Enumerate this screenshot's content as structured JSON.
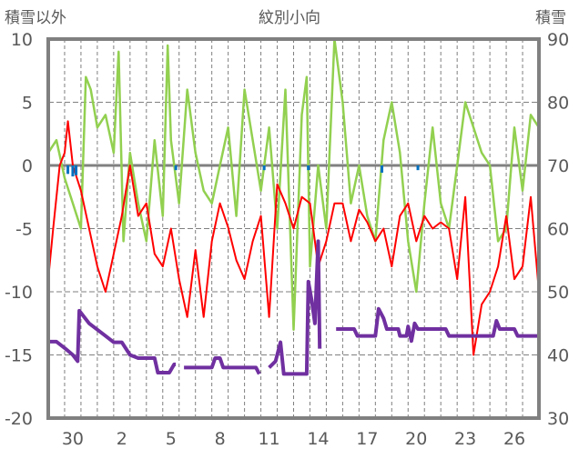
{
  "chart_data": {
    "type": "line",
    "title": "紋別小向",
    "ylabel_left": "積雪以外",
    "ylabel_right": "積雪",
    "ylim_left": [
      -20,
      10
    ],
    "ylim_right": [
      30,
      90
    ],
    "yticks_left": [
      "10",
      "5",
      "0",
      "-5",
      "-10",
      "-15",
      "-20"
    ],
    "yticks_right": [
      "90",
      "80",
      "70",
      "60",
      "50",
      "40",
      "30"
    ],
    "x_unit": "days since start of 29th",
    "xlim": [
      0,
      30
    ],
    "xticks": [
      {
        "label": "30",
        "day": 1.5
      },
      {
        "label": "2",
        "day": 4.5
      },
      {
        "label": "5",
        "day": 7.5
      },
      {
        "label": "8",
        "day": 10.5
      },
      {
        "label": "11",
        "day": 13.5
      },
      {
        "label": "14",
        "day": 16.5
      },
      {
        "label": "17",
        "day": 19.5
      },
      {
        "label": "20",
        "day": 22.5
      },
      {
        "label": "23",
        "day": 25.5
      },
      {
        "label": "26",
        "day": 28.5
      }
    ],
    "grid": true,
    "series": [
      {
        "name": "green",
        "axis": "left",
        "color": "#92d050",
        "points": [
          [
            0,
            1
          ],
          [
            0.5,
            2
          ],
          [
            1,
            -1
          ],
          [
            1.5,
            -3
          ],
          [
            2,
            -5
          ],
          [
            2.3,
            7
          ],
          [
            2.6,
            6
          ],
          [
            3,
            3
          ],
          [
            3.5,
            4
          ],
          [
            4,
            1
          ],
          [
            4.3,
            9
          ],
          [
            4.6,
            -6
          ],
          [
            5,
            1
          ],
          [
            5.5,
            -3
          ],
          [
            6,
            -6
          ],
          [
            6.5,
            2
          ],
          [
            7,
            -4
          ],
          [
            7.3,
            9.5
          ],
          [
            7.5,
            2
          ],
          [
            8,
            -3
          ],
          [
            8.5,
            6
          ],
          [
            9,
            1
          ],
          [
            9.5,
            -2
          ],
          [
            10,
            -3
          ],
          [
            10.5,
            0
          ],
          [
            11,
            3
          ],
          [
            11.5,
            -4
          ],
          [
            12,
            6
          ],
          [
            12.5,
            2
          ],
          [
            13,
            -2
          ],
          [
            13.5,
            3
          ],
          [
            14,
            -5
          ],
          [
            14.5,
            6
          ],
          [
            15,
            -13
          ],
          [
            15.5,
            4
          ],
          [
            15.8,
            7
          ],
          [
            16,
            -8
          ],
          [
            16.5,
            0
          ],
          [
            17,
            -5
          ],
          [
            17.5,
            10
          ],
          [
            18,
            5
          ],
          [
            18.5,
            -3
          ],
          [
            19,
            0
          ],
          [
            19.5,
            -4
          ],
          [
            20,
            -6
          ],
          [
            20.5,
            2
          ],
          [
            21,
            5
          ],
          [
            21.5,
            1
          ],
          [
            22,
            -6
          ],
          [
            22.5,
            -10
          ],
          [
            23,
            -3
          ],
          [
            23.5,
            3
          ],
          [
            24,
            -3
          ],
          [
            24.5,
            -5
          ],
          [
            25,
            0
          ],
          [
            25.5,
            5
          ],
          [
            26,
            3
          ],
          [
            26.5,
            1
          ],
          [
            27,
            0
          ],
          [
            27.5,
            -6
          ],
          [
            28,
            -5
          ],
          [
            28.5,
            3
          ],
          [
            29,
            -2
          ],
          [
            29.5,
            4
          ],
          [
            30,
            3
          ]
        ]
      },
      {
        "name": "red",
        "axis": "left",
        "color": "#ff0000",
        "points": [
          [
            0,
            -9
          ],
          [
            0.3,
            -5
          ],
          [
            0.7,
            0
          ],
          [
            1,
            1
          ],
          [
            1.2,
            3.5
          ],
          [
            1.5,
            0
          ],
          [
            2,
            -2
          ],
          [
            2.5,
            -5
          ],
          [
            3,
            -8
          ],
          [
            3.5,
            -10
          ],
          [
            4,
            -7
          ],
          [
            4.5,
            -4
          ],
          [
            5,
            0
          ],
          [
            5.5,
            -4
          ],
          [
            6,
            -3
          ],
          [
            6.5,
            -7
          ],
          [
            7,
            -8
          ],
          [
            7.5,
            -5
          ],
          [
            8,
            -9
          ],
          [
            8.5,
            -12
          ],
          [
            9,
            -6.7
          ],
          [
            9.5,
            -12
          ],
          [
            10,
            -6
          ],
          [
            10.5,
            -3
          ],
          [
            11,
            -4.9
          ],
          [
            11.5,
            -7.5
          ],
          [
            12,
            -9
          ],
          [
            12.5,
            -6
          ],
          [
            13,
            -4
          ],
          [
            13.5,
            -12
          ],
          [
            14,
            -1.5
          ],
          [
            14.5,
            -3
          ],
          [
            15,
            -5
          ],
          [
            15.5,
            -2.5
          ],
          [
            16,
            -3
          ],
          [
            16.5,
            -8
          ],
          [
            17,
            -6
          ],
          [
            17.5,
            -3
          ],
          [
            18,
            -3
          ],
          [
            18.5,
            -6
          ],
          [
            19,
            -3.5
          ],
          [
            19.5,
            -4.5
          ],
          [
            20,
            -6
          ],
          [
            20.5,
            -5
          ],
          [
            21,
            -8
          ],
          [
            21.5,
            -4
          ],
          [
            22,
            -3
          ],
          [
            22.5,
            -6
          ],
          [
            23,
            -4
          ],
          [
            23.5,
            -5
          ],
          [
            24,
            -4.5
          ],
          [
            24.5,
            -5
          ],
          [
            25,
            -9
          ],
          [
            25.5,
            -2.5
          ],
          [
            26,
            -15
          ],
          [
            26.5,
            -11
          ],
          [
            27,
            -10
          ],
          [
            27.5,
            -8
          ],
          [
            28,
            -4
          ],
          [
            28.5,
            -9
          ],
          [
            29,
            -8
          ],
          [
            29.5,
            -2.5
          ],
          [
            30,
            -10
          ]
        ]
      },
      {
        "name": "purple",
        "axis": "right",
        "color": "#7030a0",
        "segments": [
          [
            [
              0,
              42.1
            ],
            [
              0.5,
              42.1
            ],
            [
              1,
              41.1
            ],
            [
              1.5,
              40
            ],
            [
              1.8,
              39
            ],
            [
              1.9,
              47
            ],
            [
              2.5,
              45
            ],
            [
              3,
              44
            ],
            [
              3.5,
              43
            ],
            [
              4,
              42
            ],
            [
              4.5,
              42
            ],
            [
              5,
              40
            ],
            [
              5.5,
              39.5
            ],
            [
              6.5,
              39.5
            ],
            [
              6.7,
              37.2
            ],
            [
              7.4,
              37.2
            ],
            [
              7.7,
              38.5
            ],
            [
              7.8,
              38.5
            ]
          ],
          [
            [
              8.3,
              38
            ],
            [
              10,
              38
            ],
            [
              10.2,
              39.5
            ],
            [
              10.5,
              39.5
            ],
            [
              10.7,
              38
            ],
            [
              12.7,
              38
            ],
            [
              12.9,
              37
            ]
          ],
          [
            [
              13.5,
              38
            ],
            [
              13.9,
              39
            ],
            [
              14.2,
              42
            ],
            [
              14.4,
              37
            ],
            [
              15.8,
              37
            ],
            [
              15.9,
              51.6
            ],
            [
              16.1,
              48.7
            ],
            [
              16.3,
              45
            ],
            [
              16.5,
              58
            ],
            [
              16.6,
              41
            ]
          ],
          [
            [
              17.6,
              44.1
            ],
            [
              18.7,
              44.1
            ],
            [
              18.9,
              43
            ],
            [
              20,
              43
            ],
            [
              20.2,
              47.3
            ],
            [
              20.5,
              45.8
            ],
            [
              20.7,
              44.1
            ],
            [
              21.4,
              44.1
            ],
            [
              21.5,
              43
            ],
            [
              21.9,
              43
            ],
            [
              22,
              44.5
            ],
            [
              22.2,
              42.2
            ],
            [
              22.4,
              45
            ],
            [
              22.6,
              44.1
            ],
            [
              24.3,
              44.1
            ],
            [
              24.5,
              43
            ],
            [
              27.2,
              43
            ],
            [
              27.4,
              45.4
            ],
            [
              27.6,
              44.1
            ],
            [
              28.5,
              44.1
            ],
            [
              28.7,
              43
            ],
            [
              30,
              43
            ]
          ]
        ]
      },
      {
        "name": "blue-bars",
        "axis": "left",
        "color": "#0070c0",
        "bars": [
          [
            1.2,
            -0.6
          ],
          [
            1.5,
            -0.8
          ],
          [
            1.7,
            -0.7
          ],
          [
            7.8,
            -0.3
          ],
          [
            13.2,
            -0.3
          ],
          [
            15.9,
            -0.3
          ],
          [
            20.4,
            -0.5
          ],
          [
            22.6,
            -0.3
          ]
        ]
      }
    ]
  }
}
